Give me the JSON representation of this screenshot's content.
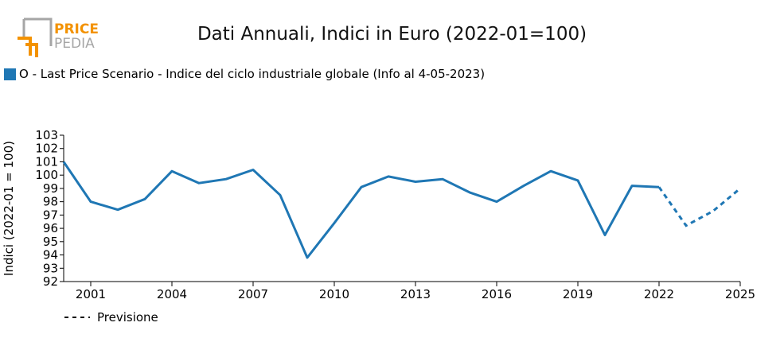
{
  "header": {
    "logo_line1": "PRICE",
    "logo_line2": "PEDIA",
    "title": "Dati Annuali, Indici in Euro (2022-01=100)"
  },
  "legend": {
    "series_label": "O - Last Price Scenario - Indice del ciclo industriale globale (Info al 4-05-2023)",
    "forecast_label": "Previsione"
  },
  "colors": {
    "series": "#1f77b4",
    "logo_gray": "#a6a6a6",
    "logo_orange": "#f39200"
  },
  "chart_data": {
    "type": "line",
    "title": "Dati Annuali, Indici in Euro (2022-01=100)",
    "xlabel": "",
    "ylabel": "Indici (2022-01 = 100)",
    "x": [
      2000,
      2001,
      2002,
      2003,
      2004,
      2005,
      2006,
      2007,
      2008,
      2009,
      2010,
      2011,
      2012,
      2013,
      2014,
      2015,
      2016,
      2017,
      2018,
      2019,
      2020,
      2021,
      2022,
      2023,
      2024,
      2025
    ],
    "series": [
      {
        "name": "O - Last Price Scenario - Indice del ciclo industriale globale (Info al 4-05-2023)",
        "values": [
          101.0,
          98.0,
          97.4,
          98.2,
          100.3,
          99.4,
          99.7,
          100.4,
          98.5,
          93.8,
          96.4,
          99.1,
          99.9,
          99.5,
          99.7,
          98.7,
          98.0,
          99.2,
          100.3,
          99.6,
          95.5,
          99.2,
          99.1,
          96.2,
          97.3,
          99.0
        ],
        "forecast_from": 2022
      }
    ],
    "xlim": [
      2000,
      2025
    ],
    "ylim": [
      92,
      103
    ],
    "x_ticks": [
      2001,
      2004,
      2007,
      2010,
      2013,
      2016,
      2019,
      2022,
      2025
    ],
    "y_ticks": [
      92,
      93,
      94,
      95,
      96,
      97,
      98,
      99,
      100,
      101,
      102,
      103
    ],
    "grid": false
  }
}
